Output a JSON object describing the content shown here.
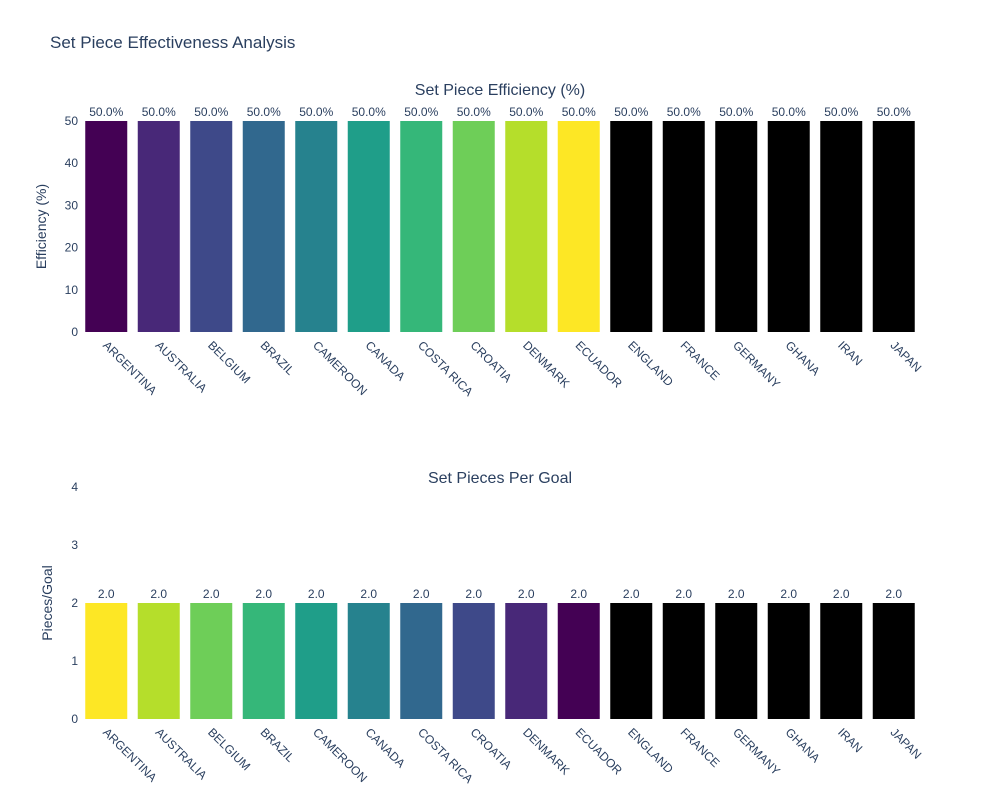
{
  "title": "Set Piece Effectiveness Analysis",
  "chart_data": [
    {
      "type": "bar",
      "title": "Set Piece Efficiency (%)",
      "xlabel": "",
      "ylabel": "Efficiency (%)",
      "ylim": [
        0,
        50
      ],
      "yticks": [
        0,
        10,
        20,
        30,
        40,
        50
      ],
      "categories": [
        "ARGENTINA",
        "AUSTRALIA",
        "BELGIUM",
        "BRAZIL",
        "CAMEROON",
        "CANADA",
        "COSTA RICA",
        "CROATIA",
        "DENMARK",
        "ECUADOR",
        "ENGLAND",
        "FRANCE",
        "GERMANY",
        "GHANA",
        "IRAN",
        "JAPAN"
      ],
      "values": [
        50,
        50,
        50,
        50,
        50,
        50,
        50,
        50,
        50,
        50,
        50,
        50,
        50,
        50,
        50,
        50
      ],
      "data_labels": [
        "50.0%",
        "50.0%",
        "50.0%",
        "50.0%",
        "50.0%",
        "50.0%",
        "50.0%",
        "50.0%",
        "50.0%",
        "50.0%",
        "50.0%",
        "50.0%",
        "50.0%",
        "50.0%",
        "50.0%",
        "50.0%"
      ],
      "colors": [
        "#440154",
        "#482878",
        "#3e4989",
        "#31688e",
        "#26828e",
        "#1f9e89",
        "#35b779",
        "#6ece58",
        "#b5de2b",
        "#fde725",
        "#000000",
        "#000000",
        "#000000",
        "#000000",
        "#000000",
        "#000000"
      ],
      "grid": false
    },
    {
      "type": "bar",
      "title": "Set Pieces Per Goal",
      "xlabel": "",
      "ylabel": "Pieces/Goal",
      "ylim": [
        0,
        4
      ],
      "yticks": [
        0,
        1,
        2,
        3,
        4
      ],
      "categories": [
        "ARGENTINA",
        "AUSTRALIA",
        "BELGIUM",
        "BRAZIL",
        "CAMEROON",
        "CANADA",
        "COSTA RICA",
        "CROATIA",
        "DENMARK",
        "ECUADOR",
        "ENGLAND",
        "FRANCE",
        "GERMANY",
        "GHANA",
        "IRAN",
        "JAPAN"
      ],
      "values": [
        2,
        2,
        2,
        2,
        2,
        2,
        2,
        2,
        2,
        2,
        2,
        2,
        2,
        2,
        2,
        2
      ],
      "data_labels": [
        "2.0",
        "2.0",
        "2.0",
        "2.0",
        "2.0",
        "2.0",
        "2.0",
        "2.0",
        "2.0",
        "2.0",
        "2.0",
        "2.0",
        "2.0",
        "2.0",
        "2.0",
        "2.0"
      ],
      "colors": [
        "#fde725",
        "#b5de2b",
        "#6ece58",
        "#35b779",
        "#1f9e89",
        "#26828e",
        "#31688e",
        "#3e4989",
        "#482878",
        "#440154",
        "#000000",
        "#000000",
        "#000000",
        "#000000",
        "#000000",
        "#000000"
      ],
      "grid": false
    }
  ]
}
